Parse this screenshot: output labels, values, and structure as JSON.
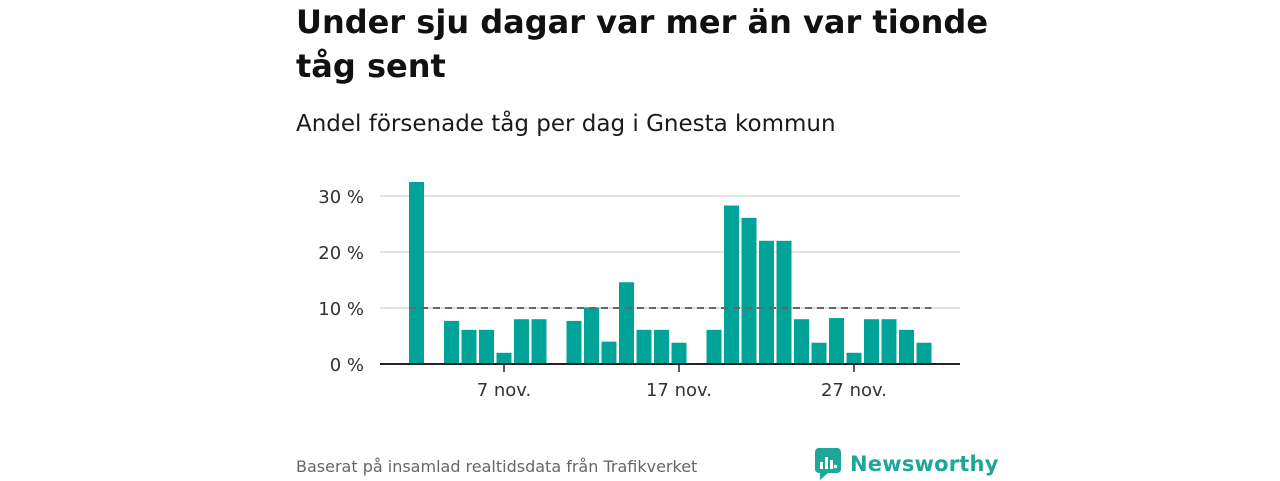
{
  "title": "Under sju dagar var mer än var tionde tåg sent",
  "subtitle": "Andel försenade tåg per dag i Gnesta kommun",
  "source": "Baserat på insamlad realtidsdata från Trafikverket",
  "brand": {
    "name": "Newsworthy",
    "icon": "newsworthy-logo-icon",
    "color": "#1ea698"
  },
  "chart_data": {
    "type": "bar",
    "color": "#00a398",
    "reference_line_color": "#666666",
    "ylim": [
      0,
      30
    ],
    "yticks": [
      {
        "value": 0,
        "label": "0 %"
      },
      {
        "value": 10,
        "label": "10 %"
      },
      {
        "value": 20,
        "label": "20 %"
      },
      {
        "value": 30,
        "label": "30 %"
      }
    ],
    "xticks": [
      {
        "day": 7,
        "label": "7 nov."
      },
      {
        "day": 17,
        "label": "17 nov."
      },
      {
        "day": 27,
        "label": "27 nov."
      }
    ],
    "days": [
      2,
      3,
      4,
      5,
      6,
      7,
      8,
      9,
      10,
      11,
      12,
      13,
      14,
      15,
      16,
      17,
      18,
      19,
      20,
      21,
      22,
      23,
      24,
      25,
      26,
      27,
      28,
      29,
      30,
      31
    ],
    "values": [
      32.5,
      0,
      7.7,
      6.1,
      6.1,
      2.0,
      8.0,
      8.0,
      0,
      7.7,
      10.1,
      4.0,
      14.6,
      6.1,
      6.1,
      3.8,
      0,
      6.1,
      28.3,
      26.1,
      22.0,
      22.0,
      8.0,
      3.8,
      8.2,
      2.0,
      8.0,
      8.0,
      6.1,
      3.8
    ],
    "reference_line": {
      "value": 10,
      "style": "dashed"
    },
    "grid": true
  }
}
